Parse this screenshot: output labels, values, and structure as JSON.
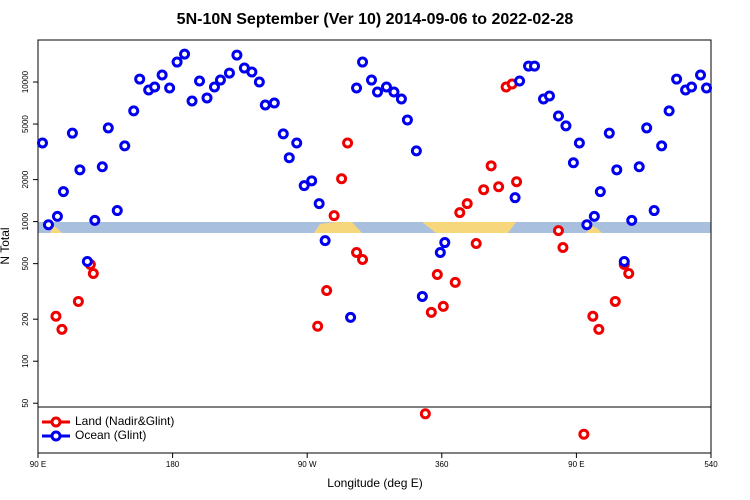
{
  "chart_data": {
    "type": "scatter",
    "title": "5N-10N September (Ver 10)   2014-09-06 to 2022-02-28",
    "x_label": "Longitude (deg E)",
    "y_label": "N Total",
    "log_y": true,
    "legend": "lower left",
    "xlim": [
      90,
      540
    ],
    "ylim": [
      22,
      20000
    ],
    "xticks": [
      {
        "value": 90,
        "label": "90 E"
      },
      180,
      {
        "value": 270,
        "label": "90 W"
      },
      360,
      {
        "value": 450,
        "label": "90 E"
      },
      540
    ],
    "yticks": [
      50,
      100,
      200,
      500,
      1000,
      2000,
      5000,
      10000
    ],
    "series": [
      {
        "name": "Land (Nadir&Glint)",
        "color": "#ee0000",
        "x": [
          102,
          106,
          117,
          125,
          127,
          277,
          283,
          288,
          293,
          297,
          303,
          307,
          349,
          353,
          357,
          361,
          369,
          372,
          377,
          383,
          388,
          393,
          398,
          403,
          407,
          410,
          438,
          441,
          455,
          461,
          465,
          476,
          482,
          485
        ],
        "values": [
          210,
          169,
          268,
          493,
          425,
          178,
          321,
          1104,
          2030,
          3660,
          601,
          535,
          42,
          224,
          418,
          247,
          367,
          1160,
          1345,
          697,
          1693,
          2510,
          1778,
          9210,
          9680,
          1931,
          862,
          652,
          30,
          210,
          169,
          268,
          493,
          425
        ]
      },
      {
        "name": "Ocean (Glint)",
        "color": "#0000ee",
        "x": [
          93,
          97,
          103,
          107,
          113,
          118,
          123,
          128,
          133,
          137,
          143,
          148,
          154,
          158,
          164,
          168,
          173,
          178,
          183,
          188,
          193,
          198,
          203,
          208,
          212,
          218,
          223,
          228,
          233,
          238,
          242,
          248,
          254,
          258,
          263,
          268,
          273,
          278,
          282,
          299,
          303,
          307,
          313,
          317,
          323,
          328,
          333,
          337,
          343,
          347,
          359,
          362,
          409,
          412,
          418,
          422,
          428,
          432,
          438,
          443,
          448,
          452,
          457,
          462,
          466,
          472,
          477,
          482,
          487,
          492,
          497,
          502,
          507,
          512,
          517,
          523,
          527,
          533,
          537
        ],
        "values": [
          3660,
          950,
          1090,
          1640,
          4300,
          2350,
          518,
          1020,
          2470,
          4690,
          1200,
          3490,
          6210,
          10500,
          8770,
          9210,
          11220,
          9060,
          13900,
          15850,
          7310,
          10170,
          7690,
          9210,
          10330,
          11590,
          15600,
          12590,
          11790,
          10000,
          6850,
          7080,
          4250,
          2870,
          3660,
          1810,
          1960,
          1345,
          731,
          206,
          9060,
          13900,
          10330,
          8480,
          9210,
          8480,
          7560,
          5350,
          3210,
          291,
          601,
          708,
          1484,
          10170,
          13010,
          13010,
          7560,
          7940,
          5710,
          4850,
          2640,
          3660,
          950,
          1090,
          1640,
          4300,
          2350,
          518,
          1020,
          2470,
          4690,
          1200,
          3490,
          6210,
          10500,
          8770,
          9210,
          11220,
          9060
        ]
      }
    ]
  }
}
